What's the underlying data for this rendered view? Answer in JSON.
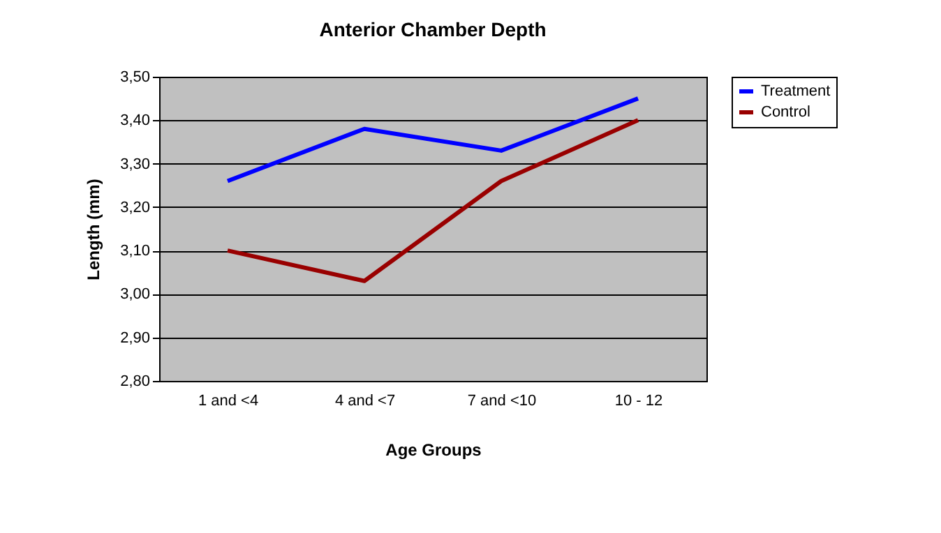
{
  "chart_data": {
    "type": "line",
    "title": "Anterior Chamber Depth",
    "xlabel": "Age Groups",
    "ylabel": "Length (mm)",
    "categories": [
      "1 and <4",
      "4 and <7",
      "7 and <10",
      "10 - 12"
    ],
    "series": [
      {
        "name": "Treatment",
        "color": "#0000ff",
        "values": [
          3.26,
          3.38,
          3.33,
          3.45
        ]
      },
      {
        "name": "Control",
        "color": "#990000",
        "values": [
          3.1,
          3.03,
          3.26,
          3.4
        ]
      }
    ],
    "ylim": [
      2.8,
      3.5
    ],
    "yticks": [
      {
        "value": 2.8,
        "label": "2,80"
      },
      {
        "value": 2.9,
        "label": "2,90"
      },
      {
        "value": 3.0,
        "label": "3,00"
      },
      {
        "value": 3.1,
        "label": "3,10"
      },
      {
        "value": 3.2,
        "label": "3,20"
      },
      {
        "value": 3.3,
        "label": "3,30"
      },
      {
        "value": 3.4,
        "label": "3,40"
      },
      {
        "value": 3.5,
        "label": "3,50"
      }
    ],
    "grid": "y",
    "legend": "right",
    "marker": "none",
    "line_style": "solid"
  }
}
